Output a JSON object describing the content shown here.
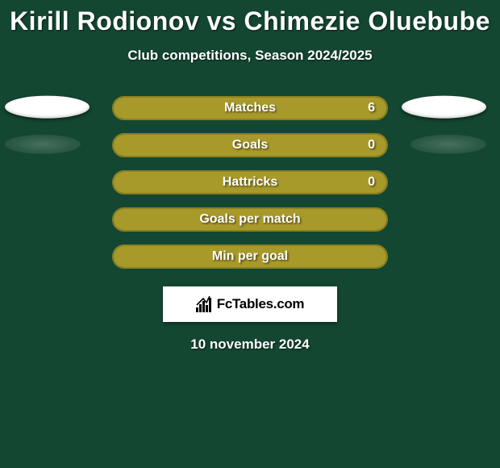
{
  "title": "Kirill Rodionov vs Chimezie Oluebube",
  "subtitle": "Club competitions, Season 2024/2025",
  "date": "10 november 2024",
  "logo_text": "FcTables.com",
  "colors": {
    "background": "#144732",
    "bar_fill": "#a89a2a",
    "bar_border": "#8c8020",
    "text": "#ffffff"
  },
  "rows": [
    {
      "label": "Matches",
      "value": "6",
      "fill_pct": 100,
      "show_value": true,
      "left_ellipse": "white",
      "right_ellipse": "white"
    },
    {
      "label": "Goals",
      "value": "0",
      "fill_pct": 100,
      "show_value": true,
      "left_ellipse": "fade",
      "right_ellipse": "fade"
    },
    {
      "label": "Hattricks",
      "value": "0",
      "fill_pct": 100,
      "show_value": true,
      "left_ellipse": "none",
      "right_ellipse": "none"
    },
    {
      "label": "Goals per match",
      "value": "",
      "fill_pct": 100,
      "show_value": false,
      "left_ellipse": "none",
      "right_ellipse": "none"
    },
    {
      "label": "Min per goal",
      "value": "",
      "fill_pct": 100,
      "show_value": false,
      "left_ellipse": "none",
      "right_ellipse": "none"
    }
  ]
}
